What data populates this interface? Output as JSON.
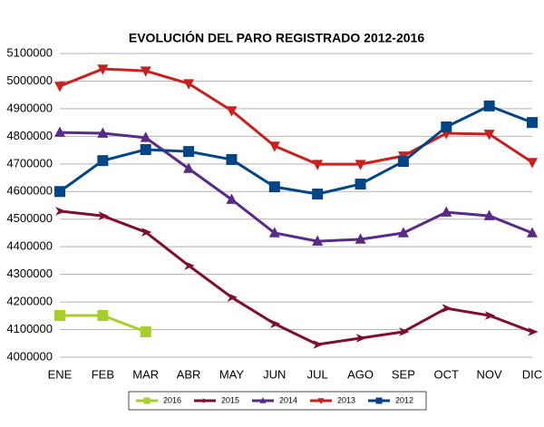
{
  "chart_data": {
    "type": "line",
    "title": "EVOLUCIÓN DEL PARO REGISTRADO 2012-2016",
    "categories": [
      "ENE",
      "FEB",
      "MAR",
      "ABR",
      "MAY",
      "JUN",
      "JUL",
      "AGO",
      "SEP",
      "OCT",
      "NOV",
      "DIC"
    ],
    "ylim": [
      4000000,
      5100000
    ],
    "yticks": [
      4000000,
      4100000,
      4200000,
      4300000,
      4400000,
      4500000,
      4600000,
      4700000,
      4800000,
      4900000,
      5000000,
      5100000
    ],
    "grid": true,
    "legend": "bottom",
    "series": [
      {
        "name": "2016",
        "color": "#a6cf28",
        "marker": "square",
        "values": [
          4151000,
          4151000,
          4092000,
          null,
          null,
          null,
          null,
          null,
          null,
          null,
          null,
          null
        ]
      },
      {
        "name": "2015",
        "color": "#7e0f30",
        "marker": "arrow",
        "values": [
          4529000,
          4512000,
          4453000,
          4332000,
          4217000,
          4121000,
          4046000,
          4069000,
          4092000,
          4177000,
          4151000,
          4092000
        ]
      },
      {
        "name": "2014",
        "color": "#5a2a88",
        "marker": "triangle-up",
        "values": [
          4814000,
          4811000,
          4795000,
          4683000,
          4571000,
          4450000,
          4420000,
          4427000,
          4450000,
          4525000,
          4512000,
          4450000
        ]
      },
      {
        "name": "2013",
        "color": "#c9211e",
        "marker": "triangle-down",
        "values": [
          4982000,
          5044000,
          5037000,
          4991000,
          4893000,
          4765000,
          4699000,
          4699000,
          4729000,
          4811000,
          4808000,
          4706000
        ]
      },
      {
        "name": "2012",
        "color": "#004586",
        "marker": "square",
        "values": [
          4600000,
          4712000,
          4752000,
          4745000,
          4716000,
          4617000,
          4591000,
          4627000,
          4709000,
          4834000,
          4910000,
          4850000
        ]
      }
    ]
  }
}
